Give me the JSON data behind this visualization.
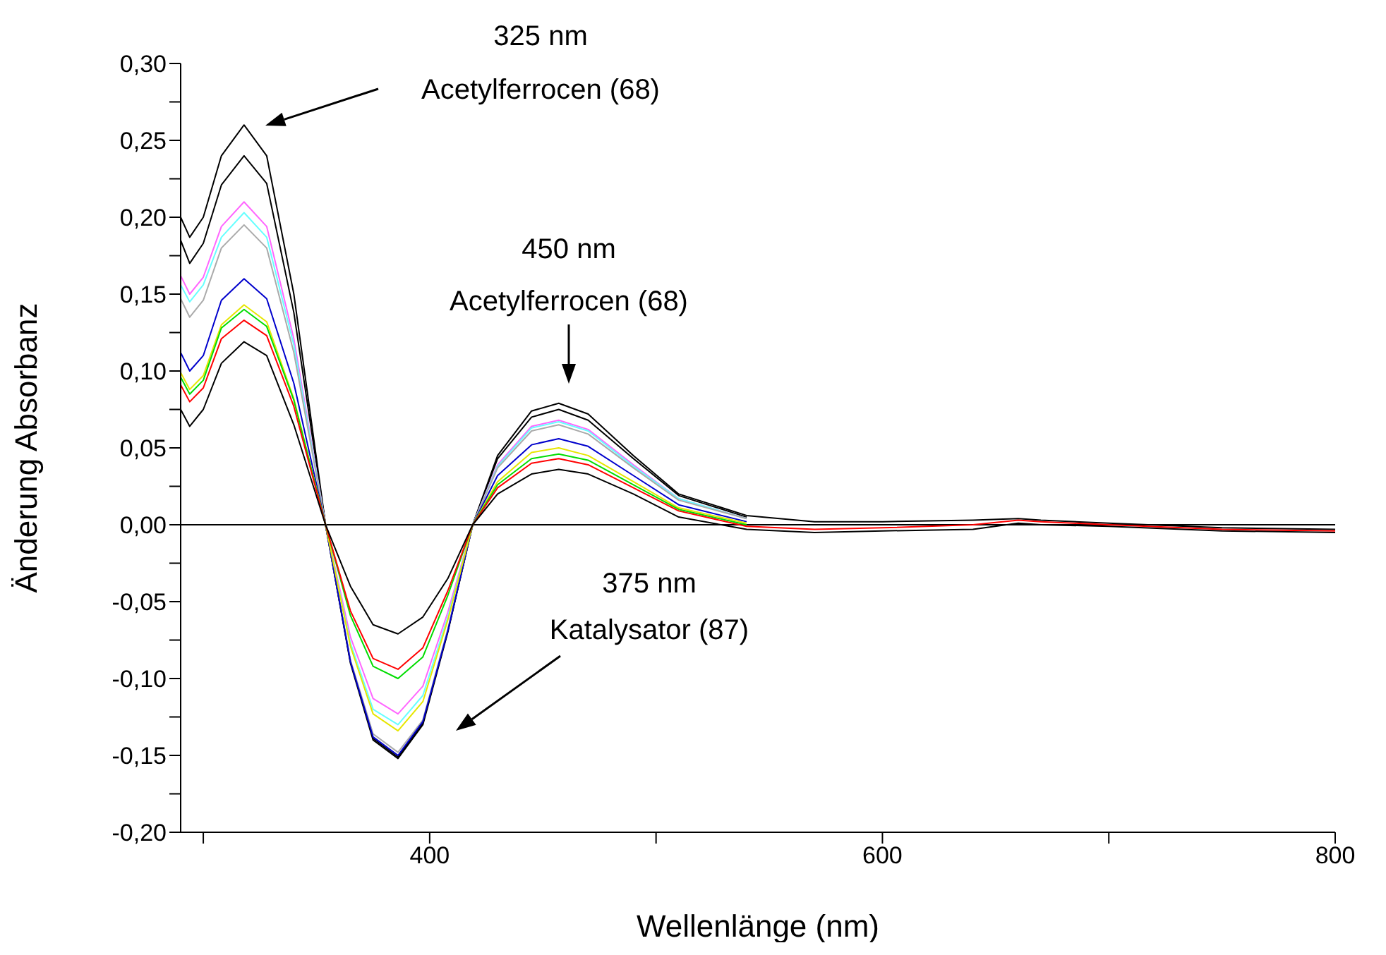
{
  "chart_data": {
    "type": "line",
    "xlabel": "Wellenlänge (nm)",
    "ylabel": "Änderung Absorbanz",
    "x": [
      290,
      294,
      300,
      308,
      318,
      328,
      340,
      354,
      365,
      375,
      386,
      397,
      408,
      419,
      430,
      445,
      457,
      470,
      490,
      510,
      540,
      570,
      600,
      640,
      660,
      670,
      700,
      750,
      800
    ],
    "series": [
      {
        "color": "#000000",
        "values": [
          0.2,
          0.187,
          0.2,
          0.24,
          0.26,
          0.24,
          0.15,
          0,
          -0.09,
          -0.14,
          -0.152,
          -0.13,
          -0.07,
          0,
          0.045,
          0.074,
          0.079,
          0.072,
          0.045,
          0.02,
          0.006,
          0.002,
          0.002,
          0.003,
          0.004,
          0.003,
          0.001,
          -0.002,
          -0.003
        ]
      },
      {
        "color": "#000000",
        "values": [
          0.185,
          0.17,
          0.183,
          0.221,
          0.24,
          0.222,
          0.138,
          0,
          -0.089,
          -0.139,
          -0.151,
          -0.129,
          -0.069,
          0,
          0.043,
          0.07,
          0.075,
          0.068,
          0.043,
          0.019,
          0.005,
          null,
          null,
          null,
          null,
          null,
          null,
          null,
          null
        ]
      },
      {
        "color": "#ff66ff",
        "values": [
          0.162,
          0.15,
          0.161,
          0.194,
          0.21,
          0.194,
          0.121,
          0,
          -0.073,
          -0.113,
          -0.123,
          -0.105,
          -0.057,
          0,
          0.039,
          0.064,
          0.068,
          0.062,
          0.039,
          0.017,
          0.004,
          null,
          null,
          null,
          null,
          null,
          null,
          null,
          null
        ]
      },
      {
        "color": "#66ffff",
        "values": [
          0.156,
          0.145,
          0.156,
          0.187,
          0.203,
          0.187,
          0.117,
          0,
          -0.077,
          -0.12,
          -0.13,
          -0.111,
          -0.06,
          0,
          0.038,
          0.063,
          0.067,
          0.061,
          0.038,
          0.017,
          0.004,
          null,
          null,
          null,
          null,
          null,
          null,
          null,
          null
        ]
      },
      {
        "color": "#aaaaaa",
        "values": [
          0.147,
          0.135,
          0.146,
          0.18,
          0.195,
          0.18,
          0.112,
          0,
          -0.088,
          -0.136,
          -0.148,
          -0.127,
          -0.068,
          0,
          0.037,
          0.061,
          0.065,
          0.059,
          0.037,
          0.016,
          0.004,
          null,
          null,
          null,
          null,
          null,
          null,
          null,
          null
        ]
      },
      {
        "color": "#0000cc",
        "values": [
          0.112,
          0.1,
          0.11,
          0.146,
          0.16,
          0.147,
          0.092,
          0,
          -0.089,
          -0.138,
          -0.15,
          -0.128,
          -0.069,
          0,
          0.032,
          0.052,
          0.056,
          0.051,
          0.032,
          0.013,
          0.002,
          null,
          null,
          null,
          null,
          null,
          null,
          null,
          null
        ]
      },
      {
        "color": "#e6e600",
        "values": [
          0.099,
          0.088,
          0.097,
          0.13,
          0.143,
          0.132,
          0.082,
          0,
          -0.079,
          -0.123,
          -0.134,
          -0.115,
          -0.062,
          0,
          0.028,
          0.047,
          0.05,
          0.045,
          0.028,
          0.011,
          0.001,
          null,
          null,
          null,
          null,
          null,
          null,
          null,
          null
        ]
      },
      {
        "color": "#00dd00",
        "values": [
          0.096,
          0.085,
          0.094,
          0.128,
          0.14,
          0.129,
          0.081,
          0,
          -0.059,
          -0.092,
          -0.1,
          -0.086,
          -0.046,
          0,
          0.026,
          0.043,
          0.046,
          0.042,
          0.026,
          0.01,
          0,
          null,
          null,
          null,
          null,
          null,
          null,
          null,
          null
        ]
      },
      {
        "color": "#ff0000",
        "values": [
          0.091,
          0.08,
          0.089,
          0.121,
          0.133,
          0.123,
          0.077,
          0,
          -0.056,
          -0.087,
          -0.094,
          -0.08,
          -0.043,
          0,
          0.024,
          0.04,
          0.043,
          0.039,
          0.024,
          0.009,
          -0.001,
          -0.003,
          -0.002,
          0,
          0.003,
          0.002,
          0,
          -0.003,
          -0.004
        ]
      },
      {
        "color": "#000000",
        "values": [
          0.075,
          0.064,
          0.075,
          0.105,
          0.119,
          0.11,
          0.065,
          0,
          -0.04,
          -0.065,
          -0.071,
          -0.06,
          -0.035,
          0,
          0.02,
          0.033,
          0.036,
          0.033,
          0.02,
          0.005,
          -0.003,
          -0.005,
          -0.004,
          -0.003,
          0.001,
          0,
          -0.001,
          -0.004,
          -0.005
        ]
      }
    ],
    "xlim": [
      290,
      800
    ],
    "xticks": [
      {
        "value": 300,
        "label": null
      },
      {
        "value": 400,
        "label": "400"
      },
      {
        "value": 500,
        "label": null
      },
      {
        "value": 600,
        "label": "600"
      },
      {
        "value": 700,
        "label": null
      },
      {
        "value": 800,
        "label": "800"
      }
    ],
    "ylim": [
      -0.2,
      0.3
    ],
    "yticks": [
      {
        "value": -0.2,
        "label": "-0,20"
      },
      {
        "value": -0.175,
        "label": null
      },
      {
        "value": -0.15,
        "label": "-0,15"
      },
      {
        "value": -0.125,
        "label": null
      },
      {
        "value": -0.1,
        "label": "-0,10"
      },
      {
        "value": -0.075,
        "label": null
      },
      {
        "value": -0.05,
        "label": "-0,05"
      },
      {
        "value": -0.025,
        "label": null
      },
      {
        "value": 0,
        "label": "0,00"
      },
      {
        "value": 0.025,
        "label": null
      },
      {
        "value": 0.05,
        "label": "0,05"
      },
      {
        "value": 0.075,
        "label": null
      },
      {
        "value": 0.1,
        "label": "0,10"
      },
      {
        "value": 0.125,
        "label": null
      },
      {
        "value": 0.15,
        "label": "0,15"
      },
      {
        "value": 0.175,
        "label": null
      },
      {
        "value": 0.2,
        "label": "0,20"
      },
      {
        "value": 0.225,
        "label": null
      },
      {
        "value": 0.25,
        "label": "0,25"
      },
      {
        "value": 0.275,
        "label": null
      },
      {
        "value": 0.3,
        "label": "0,30"
      }
    ],
    "ref_lines": [
      {
        "axis": "y",
        "value": 0,
        "color": "#000000"
      }
    ],
    "annotations": [
      "325 nm\nAcetylferrocen (68)",
      "450 nm\nAcetylferrocen (68)",
      "375 nm\nKatalysator (87)"
    ],
    "grid": false
  }
}
